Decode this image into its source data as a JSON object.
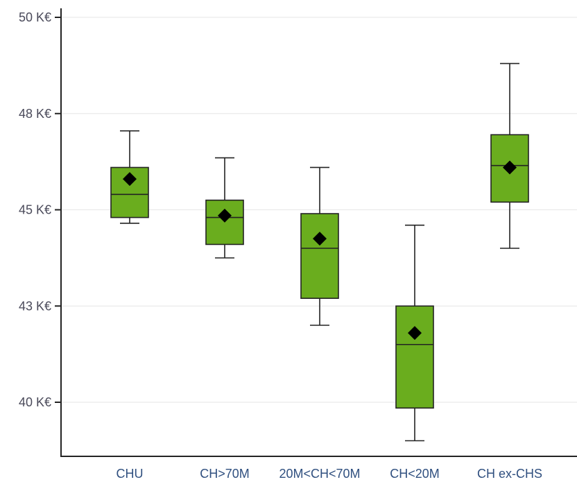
{
  "chart_data": {
    "type": "boxplot",
    "title": "",
    "xlabel": "",
    "ylabel": "",
    "ylim": [
      38.6,
      50.2
    ],
    "y_ticks": [
      {
        "value": 40,
        "label": "40 K€"
      },
      {
        "value": 42.5,
        "label": "43 K€"
      },
      {
        "value": 45,
        "label": "45 K€"
      },
      {
        "value": 47.5,
        "label": "48 K€"
      },
      {
        "value": 50,
        "label": "50 K€"
      }
    ],
    "grid": true,
    "box_color": "#6aad1e",
    "categories": [
      "CHU",
      "CH>70M",
      "20M<CH<70M",
      "CH<20M",
      "CH ex-CHS"
    ],
    "boxes": [
      {
        "min": 44.65,
        "q1": 44.8,
        "median": 45.4,
        "q3": 46.1,
        "max": 47.05,
        "mean": 45.8
      },
      {
        "min": 43.75,
        "q1": 44.1,
        "median": 44.8,
        "q3": 45.25,
        "max": 46.35,
        "mean": 44.85
      },
      {
        "min": 42.0,
        "q1": 42.7,
        "median": 44.0,
        "q3": 44.9,
        "max": 46.1,
        "mean": 44.25
      },
      {
        "min": 39.0,
        "q1": 39.85,
        "median": 41.5,
        "q3": 42.5,
        "max": 44.6,
        "mean": 41.8
      },
      {
        "min": 44.0,
        "q1": 45.2,
        "median": 46.15,
        "q3": 46.95,
        "max": 48.8,
        "mean": 46.1
      }
    ]
  }
}
